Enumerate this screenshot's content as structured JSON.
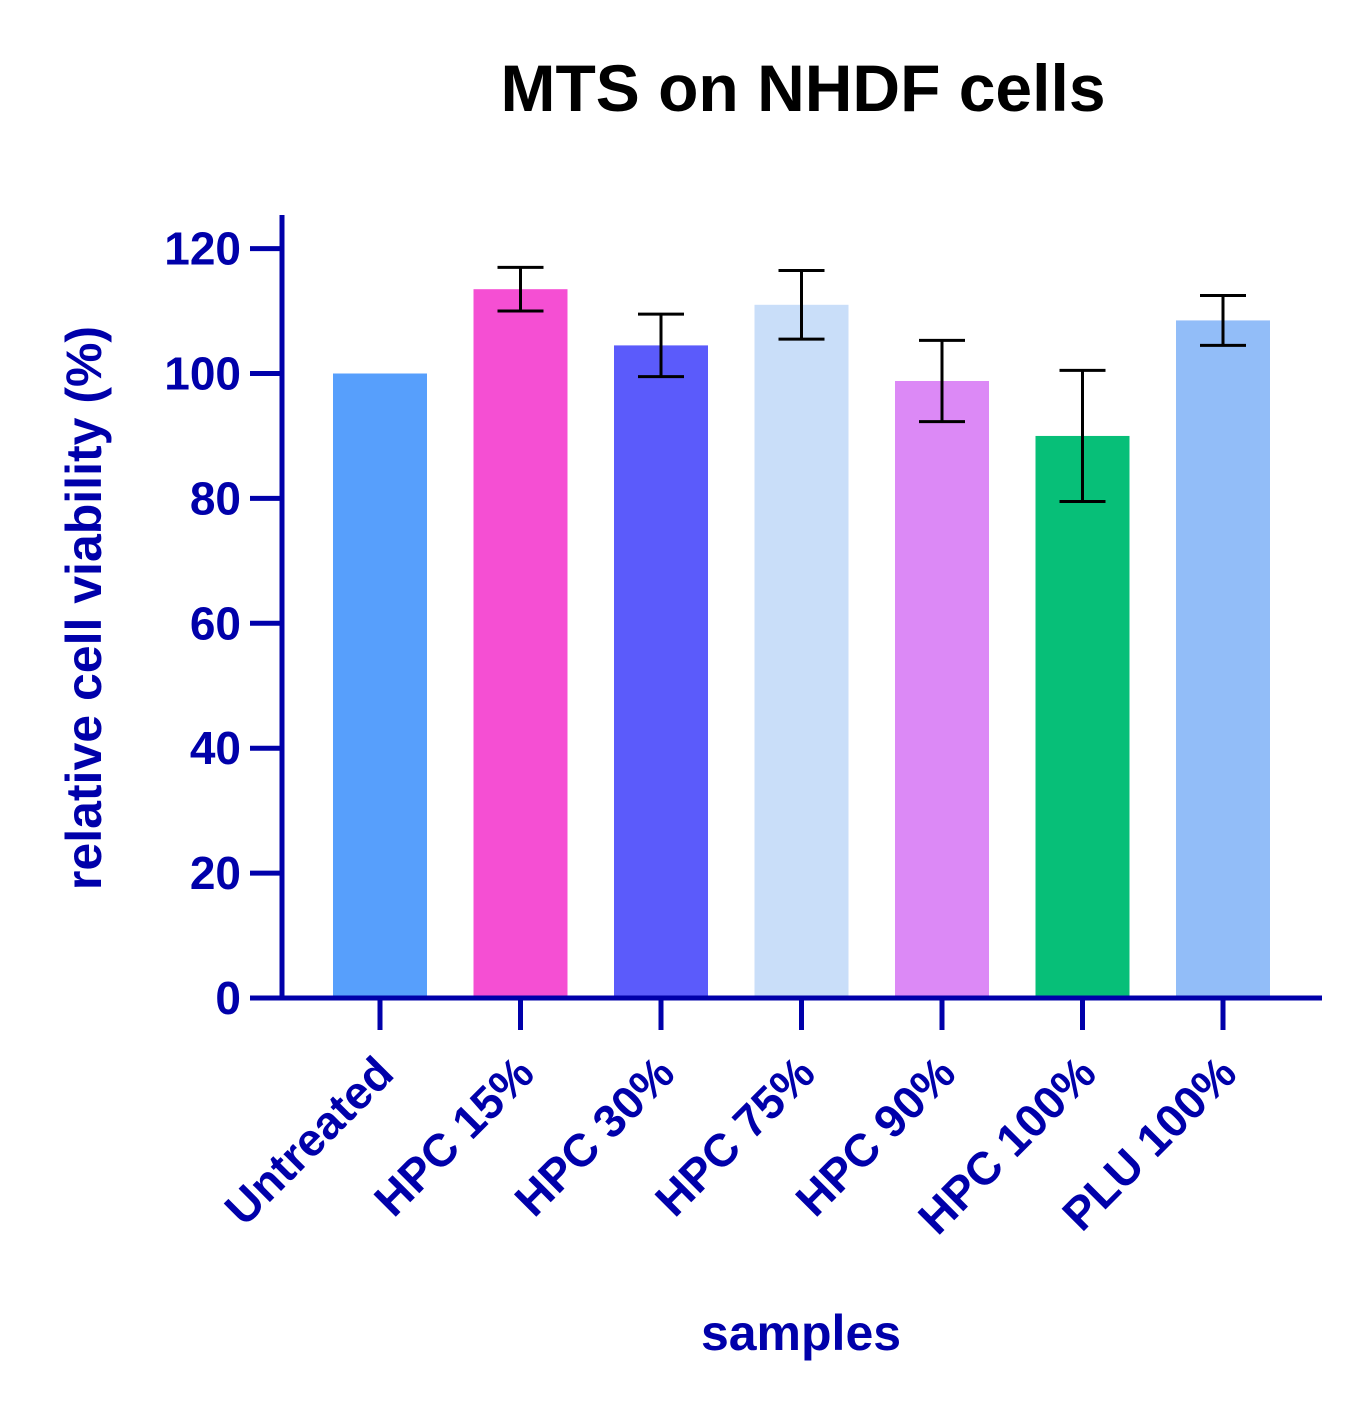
{
  "chart_data": {
    "type": "bar",
    "title": "MTS on NHDF cells",
    "xlabel": "samples",
    "ylabel": "relative cell viability (%)",
    "ylim": [
      0,
      125
    ],
    "yticks": [
      0,
      20,
      40,
      60,
      80,
      100,
      120
    ],
    "grid": false,
    "categories": [
      "Untreated",
      "HPC 15%",
      "HPC 30%",
      "HPC 75%",
      "HPC 90%",
      "HPC 100%",
      "PLU 100%"
    ],
    "values": [
      100,
      113.5,
      104.5,
      111,
      98.8,
      90,
      108.5
    ],
    "error": [
      0,
      3.5,
      5,
      5.5,
      6.5,
      10.5,
      4
    ],
    "colors": [
      "#579ffc",
      "#f54fd3",
      "#5b5bfb",
      "#c9def9",
      "#dc89f6",
      "#07bf78",
      "#92bdf8"
    ],
    "axis_color": "#0000aa",
    "error_color": "#000000"
  }
}
